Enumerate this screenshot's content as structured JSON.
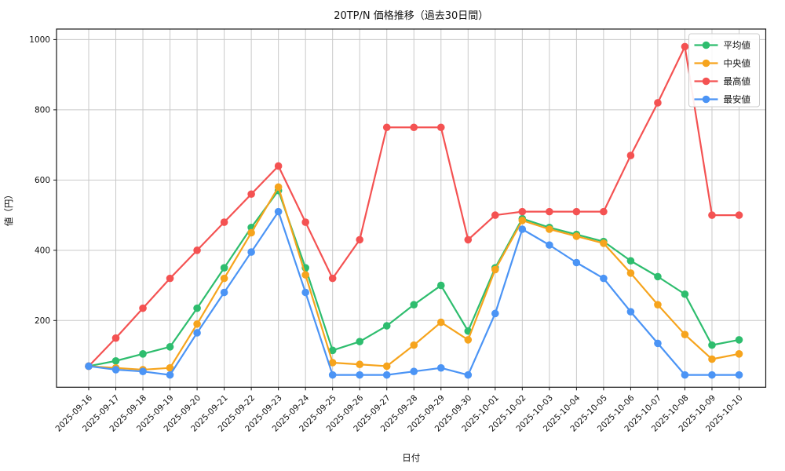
{
  "chart_data": {
    "type": "line",
    "title": "20TP/N 価格推移（過去30日間）",
    "xlabel": "日付",
    "ylabel": "値（円）",
    "ylim": [
      10,
      1030
    ],
    "yticks": [
      200,
      400,
      600,
      800,
      1000
    ],
    "grid": true,
    "legend_position": "upper right",
    "categories": [
      "2025-09-16",
      "2025-09-17",
      "2025-09-18",
      "2025-09-19",
      "2025-09-20",
      "2025-09-21",
      "2025-09-22",
      "2025-09-23",
      "2025-09-24",
      "2025-09-25",
      "2025-09-26",
      "2025-09-27",
      "2025-09-28",
      "2025-09-29",
      "2025-09-30",
      "2025-10-01",
      "2025-10-02",
      "2025-10-03",
      "2025-10-04",
      "2025-10-05",
      "2025-10-06",
      "2025-10-07",
      "2025-10-08",
      "2025-10-09",
      "2025-10-10"
    ],
    "series": [
      {
        "name": "平均値",
        "color": "#2ebd6e",
        "values": [
          70,
          85,
          105,
          125,
          235,
          350,
          465,
          570,
          350,
          115,
          140,
          185,
          245,
          300,
          170,
          350,
          490,
          465,
          445,
          425,
          370,
          325,
          275,
          130,
          145
        ]
      },
      {
        "name": "中央値",
        "color": "#f6a41d",
        "values": [
          70,
          65,
          60,
          65,
          190,
          320,
          450,
          580,
          330,
          80,
          75,
          70,
          130,
          195,
          145,
          345,
          485,
          460,
          440,
          420,
          335,
          245,
          160,
          90,
          105
        ]
      },
      {
        "name": "最高値",
        "color": "#f45252",
        "values": [
          70,
          150,
          235,
          320,
          400,
          480,
          560,
          640,
          480,
          320,
          430,
          750,
          750,
          750,
          430,
          500,
          510,
          510,
          510,
          510,
          670,
          820,
          980,
          500,
          500
        ]
      },
      {
        "name": "最安値",
        "color": "#4b94f5",
        "values": [
          70,
          60,
          55,
          45,
          165,
          280,
          395,
          510,
          280,
          45,
          45,
          45,
          55,
          65,
          45,
          220,
          460,
          415,
          365,
          320,
          225,
          135,
          45,
          45,
          45
        ]
      }
    ]
  }
}
